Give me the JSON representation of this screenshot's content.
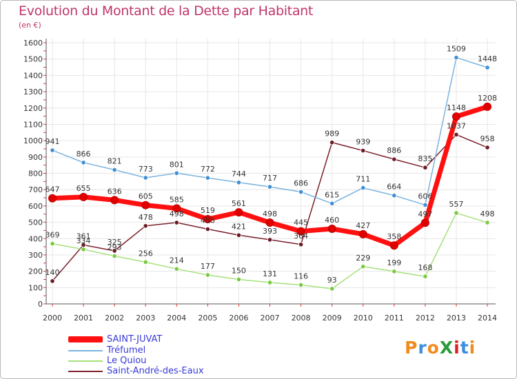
{
  "title": "Evolution du Montant de la Dette par Habitant",
  "subtitle": "(en €)",
  "logo": {
    "text": "ProXiti",
    "letter_colors": [
      "#f08c1e",
      "#3c8ee0",
      "#f08c1e",
      "#2b9a3b",
      "#e02020",
      "#3c8ee0",
      "#f08c1e"
    ]
  },
  "chart_data": {
    "type": "line",
    "title": "Evolution du Montant de la Dette par Habitant",
    "subtitle": "(en €)",
    "xlabel": "",
    "ylabel": "",
    "x": [
      2000,
      2001,
      2002,
      2003,
      2004,
      2005,
      2006,
      2007,
      2008,
      2009,
      2010,
      2011,
      2012,
      2013,
      2014
    ],
    "x_tick_labels": [
      "2000",
      "2001",
      "2002",
      "2003",
      "2004",
      "2005",
      "2006",
      "2007",
      "2008",
      "2009",
      "2010",
      "2011",
      "2012",
      "2013",
      "2014"
    ],
    "ylim": [
      0,
      1600
    ],
    "y_ticks": [
      0,
      100,
      200,
      300,
      400,
      500,
      600,
      700,
      800,
      900,
      1000,
      1100,
      1200,
      1300,
      1400,
      1500,
      1600
    ],
    "y_tick_labels": [
      "0",
      "100",
      "200",
      "300",
      "400",
      "500",
      "600",
      "700",
      "800",
      "900",
      "1000",
      "1100",
      "1200",
      "1300",
      "1400",
      "1500",
      "1600"
    ],
    "grid": true,
    "legend_position": "bottom-left",
    "series": [
      {
        "name": "Saint-André-des-Eaux",
        "color": "#7a1f2b",
        "marker": "#6b1a24",
        "values": [
          140,
          361,
          325,
          478,
          498,
          458,
          421,
          393,
          364,
          989,
          939,
          886,
          835,
          1037,
          958
        ],
        "labels": [
          "140",
          "361",
          "325",
          "478",
          "498",
          "458",
          "421",
          "393",
          "364",
          "989",
          "939",
          "886",
          "835",
          "1037",
          "958"
        ]
      },
      {
        "name": "Le Quiou",
        "color": "#a6e07a",
        "marker": "#7ac943",
        "values": [
          369,
          334,
          293,
          256,
          214,
          177,
          150,
          131,
          116,
          93,
          229,
          199,
          168,
          557,
          498
        ],
        "labels": [
          "369",
          "334",
          "293",
          "256",
          "214",
          "177",
          "150",
          "131",
          "116",
          "93",
          "229",
          "199",
          "168",
          "557",
          "498"
        ]
      },
      {
        "name": "Tréfumel",
        "color": "#7ab3e0",
        "marker": "#3f8fd2",
        "values": [
          941,
          866,
          821,
          773,
          801,
          772,
          744,
          717,
          686,
          615,
          711,
          664,
          606,
          1509,
          1448
        ],
        "labels": [
          "941",
          "866",
          "821",
          "773",
          "801",
          "772",
          "744",
          "717",
          "686",
          "615",
          "711",
          "664",
          "606",
          "1509",
          "1448"
        ]
      },
      {
        "name": "SAINT-JUVAT",
        "color": "#ff1010",
        "marker": "#e00000",
        "values": [
          647,
          655,
          636,
          605,
          585,
          519,
          561,
          498,
          445,
          460,
          427,
          358,
          497,
          1148,
          1208
        ],
        "labels": [
          "647",
          "655",
          "636",
          "605",
          "585",
          "519",
          "561",
          "498",
          "445",
          "460",
          "427",
          "358",
          "497",
          "1148",
          "1208"
        ]
      }
    ]
  },
  "legend": [
    {
      "name": "SAINT-JUVAT",
      "color": "#ff1010"
    },
    {
      "name": "Tréfumel",
      "color": "#7ab3e0"
    },
    {
      "name": "Le Quiou",
      "color": "#a6e07a"
    },
    {
      "name": "Saint-André-des-Eaux",
      "color": "#7a1f2b"
    }
  ]
}
